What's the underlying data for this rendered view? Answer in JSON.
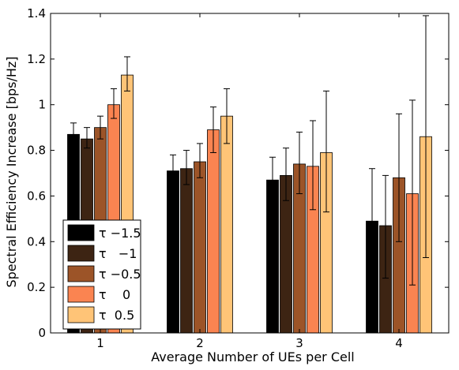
{
  "chart_data": {
    "type": "bar",
    "categories": [
      "1",
      "2",
      "3",
      "4"
    ],
    "xlabel": "Average Number of UEs per Cell",
    "ylabel": "Spectral Efficiency Increase [bps/Hz]",
    "ylim": [
      0,
      1.4
    ],
    "yticks": [
      "0",
      "0.2",
      "0.4",
      "0.6",
      "0.8",
      "1",
      "1.2",
      "1.4"
    ],
    "grid": false,
    "legend_position": "bottom-left",
    "series": [
      {
        "name": "τ −1.5",
        "color": "#000000",
        "values": [
          0.87,
          0.71,
          0.67,
          0.49
        ],
        "err_low": [
          0.83,
          0.66,
          0.58,
          0.26
        ],
        "err_high": [
          0.92,
          0.78,
          0.77,
          0.72
        ]
      },
      {
        "name": "τ   −1",
        "color": "#3d2413",
        "values": [
          0.85,
          0.72,
          0.69,
          0.47
        ],
        "err_low": [
          0.81,
          0.65,
          0.58,
          0.24
        ],
        "err_high": [
          0.9,
          0.8,
          0.81,
          0.69
        ]
      },
      {
        "name": "τ −0.5",
        "color": "#9c5428",
        "values": [
          0.9,
          0.75,
          0.74,
          0.68
        ],
        "err_low": [
          0.85,
          0.68,
          0.61,
          0.4
        ],
        "err_high": [
          0.95,
          0.83,
          0.88,
          0.96
        ]
      },
      {
        "name": "τ    0",
        "color": "#fa8451",
        "values": [
          1.0,
          0.89,
          0.73,
          0.61
        ],
        "err_low": [
          0.94,
          0.79,
          0.54,
          0.21
        ],
        "err_high": [
          1.07,
          0.99,
          0.93,
          1.02
        ]
      },
      {
        "name": "τ  0.5",
        "color": "#ffc477",
        "values": [
          1.13,
          0.95,
          0.79,
          0.86
        ],
        "err_low": [
          1.06,
          0.83,
          0.53,
          0.33
        ],
        "err_high": [
          1.21,
          1.07,
          1.06,
          1.39
        ]
      }
    ]
  }
}
